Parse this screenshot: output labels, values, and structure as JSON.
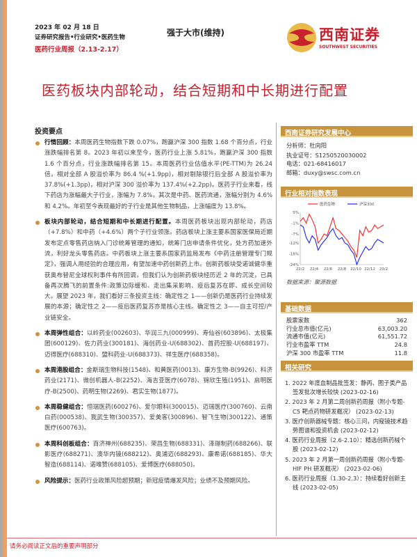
{
  "header": {
    "date": "2023 年 02 月 18 日",
    "category": "证券研究报告•行业研究•医药生物",
    "report_name": "医药行业周报（2.13-2.17）",
    "rating": "强于大市(维持)",
    "logo_cn": "西南证券",
    "logo_en": "SOUTHWEST SECURITIES"
  },
  "headline": "医药板块内部轮动，结合短期和中长期进行配置",
  "main": {
    "section_title": "投资要点",
    "bullets": [
      {
        "title": "行情回顾：",
        "text": "本周医药生物指数下跌 0.07%，跑赢沪深 300 指数 1.68 个百分点，行业涨跌幅排名第 8。2023 年初以来至今，医药行业上涨 5.81%，跑赢沪深 300 指数 1.6 个百分点，行业涨跌幅排名第 15。本周医药行业估值水平(PE-TTM)为 26.24 倍，相对全部 A 股溢价率为 86.4 %(+1.9pp)，相对剔除银行后全部 A 股溢价率为 37.8%(+1.3pp)，相对沪深 300 溢价率为 137.4%(+2.2pp)。医药子行业来看，线下药店为涨幅最大子行业，涨幅为 7.8%，其次是中药、医药流通，涨幅分别为 4.6%和 4.2%。年初至今表现最好的子行业是其他生物制品，上涨幅度为 13.8%。"
      },
      {
        "title": "板块内部轮动，结合短期和中长期进行配置。",
        "text": "本周医药板块出现内部轮动，药店（+7.8%）和中药（+4.6%）两个子行业领涨。药店板块上涨主要系国家医保局近期发布定点零售药店纳入门诊统筹管理的通知，统筹门店申请条件优化，处方药加速外流，利好龙头零售药店。中药板块上涨主要系国家药监局发布《中药注册管理专门规定》，强调人用经验的合理应用，有望加速中药创新药上市。创新药板块受诺诚健华重获奥布替尼全球权利事件有所回调，但我们认为创新药板块经历近 2 年的沉淀，已具备再次腾飞的前置条件:政策边际缓和、走出集采影响、疫后复苏在即、成长空间较大。展望 2023 年，我们看好三条投资主线：确定性之 1——创新仍是医药行业持续发展的本源；确定性之 2——疫后医药复苏亦是核心主线。确定性之 3——自主可控/产业链安全。"
      },
      {
        "title": "本周弹性组合：",
        "text": "以岭药业(002603)、华润三九(000999)、寿仙谷(603896)、太极集团(600129)、佐力药业(300181)、海创药业-U(688302)、首药控股-U(688197)、迈得医疗(688310)、盟科药业-U(688373)、祥生医疗(688358)。"
      },
      {
        "title": "本周港股组合：",
        "text": "金斯瑞生物科技(1548)、和黄医药(0013)、康方生物-B(9926)、科济药业(2171)、微创机器人-B(2252)、海吉亚医疗(6078)、锦欣生殖(1951)、启明医疗-B(2500)、药明生物(2269)、君实生物(1877)。"
      },
      {
        "title": "本周稳健组合：",
        "text": "恒瑞医药(600276)、爱尔眼科(300015)、迈瑞医疗(300760)、云南白药(000538)、我武生物(300357)、爱美客(300896)、智飞生物(300122)、通策医疗(600763)。"
      },
      {
        "title": "本周科创板组合：",
        "text": "百济神州(688235)、荣昌生物(688331)、泽璟制药(688266)、联影医疗(688271)、澳华内镜(688212)、奥浦迈(688293)、康希诺(688185)、华大智造(688114)、诺唯赞(688105)、爱博医疗(688050)。"
      },
      {
        "title": "风险提示：",
        "text": "医药行业政策风险超预期；新冠疫情爆发风险；业绩不及预期风险。"
      }
    ]
  },
  "sidebar": {
    "research_center": {
      "title": "西南证券研究发展中心",
      "lines": [
        "分析师：杜向阳",
        "执业证号：S1250520030002",
        "电话：021-68416017",
        "邮箱：duxy@swsc.com.cn"
      ]
    },
    "chart_title": "行业相对指数表现",
    "chart_source": "数据来源：聚源数据",
    "basic_title": "基础数据",
    "basic": [
      {
        "k": "股票家数",
        "v": "362"
      },
      {
        "k": "行业总市值(亿元)",
        "v": "63,003.20"
      },
      {
        "k": "流通市值(亿元)",
        "v": "61,551.72"
      },
      {
        "k": "行业市盈率 TTM",
        "v": "24.8"
      },
      {
        "k": "沪深 300 市盈率 TTM",
        "v": "11.8"
      }
    ],
    "related_title": "相关研究",
    "related": [
      "1. 2022 年度血制品批签发：静丙、图子类产品签发批次增长较快 (2023-02-16)",
      "2. 2023 年 2 月第二周创新药周报（附小专题-C5 靶点药物研发概况） (2023-02-13)",
      "3. 医疗创新器械专题：核心三问，内窥镜技术趋势图谱和投资机会 (2023-02-12)",
      "4. 医药行业周报（2.6-2.10）：精选创新药械个股 (2023-02-12)",
      "5. 2023 年 2 月第一周创新药周报（附小专题-HIF PH 研发概况） (2023-02-06)",
      "6. 医药行业周报（1.30-2.3）：持续看好创新主线 (2023-02-05)"
    ]
  },
  "footer": "请务必阅读正文后的重要声明部分",
  "colors": {
    "accent_red": "#c8202d",
    "section_gold": "#c7943d",
    "bullet": "#d6923a"
  },
  "chart_data": {
    "type": "line",
    "title": "",
    "ylim": [
      -24,
      5
    ],
    "yticks": [
      "5%",
      "-1%",
      "-7%",
      "-12%",
      "-18%",
      "-24%"
    ],
    "ytick_values": [
      5,
      -1,
      -7,
      -12,
      -18,
      -24
    ],
    "xticks": [
      "22/2",
      "22/4",
      "22/6",
      "22/8",
      "22/10",
      "22/12",
      "23/2"
    ],
    "legend": "top",
    "series": [
      {
        "name": "医药生物",
        "color": "#ff2020",
        "values": [
          0,
          2,
          -1,
          4,
          1,
          -3,
          -12,
          -10,
          -7,
          -8,
          -3,
          2,
          -4,
          -5,
          -7,
          -9,
          -11,
          -14,
          -16,
          -20,
          -5,
          -8,
          -3,
          -6,
          -5,
          -2,
          -4,
          -3,
          -2
        ]
      },
      {
        "name": "沪深300",
        "color": "#2020ff",
        "values": [
          -2,
          -3,
          -9,
          -12,
          -8,
          -10,
          -16,
          -13,
          -11,
          -9,
          -6,
          -4,
          -8,
          -10,
          -9,
          -12,
          -13,
          -16,
          -18,
          -24,
          -20,
          -17,
          -14,
          -16,
          -15,
          -12,
          -10,
          -11,
          -12
        ]
      }
    ]
  }
}
